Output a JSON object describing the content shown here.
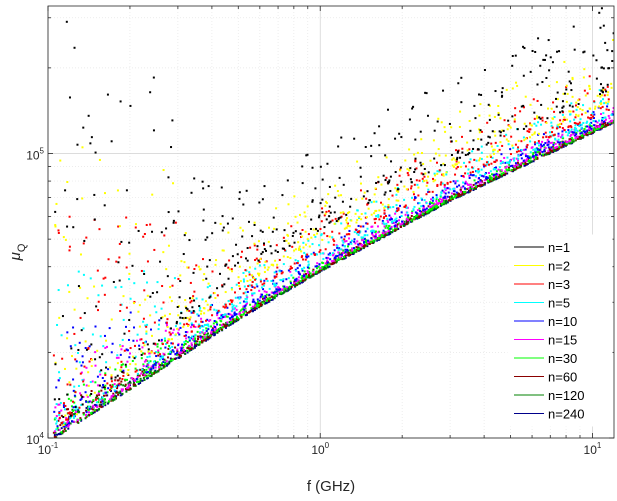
{
  "chart_data": {
    "type": "scatter",
    "title": "",
    "xlabel": "f (GHz)",
    "ylabel": "μ_Q",
    "ylabel_main": "μ",
    "ylabel_sub": "Q",
    "xscale": "log",
    "yscale": "log",
    "xlim": [
      0.1,
      12
    ],
    "ylim": [
      10000,
      330000
    ],
    "grid": true,
    "legend_position": "lower-right",
    "x_ticks": [
      {
        "base": "10",
        "exp": "-1",
        "value": 0.1
      },
      {
        "base": "10",
        "exp": "0",
        "value": 1
      },
      {
        "base": "10",
        "exp": "1",
        "value": 10
      }
    ],
    "y_ticks": [
      {
        "base": "10",
        "exp": "4",
        "value": 10000
      },
      {
        "base": "10",
        "exp": "5",
        "value": 100000
      }
    ],
    "series": [
      {
        "name": "n=1",
        "color": "#000000",
        "ridge": [
          [
            0.2,
            18000
          ],
          [
            0.5,
            38000
          ],
          [
            1,
            54000
          ],
          [
            3,
            93000
          ],
          [
            12,
            170000
          ]
        ],
        "spread": 0.3
      },
      {
        "name": "n=2",
        "color": "#ffff00",
        "ridge": [
          [
            0.2,
            17000
          ],
          [
            0.5,
            34000
          ],
          [
            1,
            49000
          ],
          [
            3,
            85000
          ],
          [
            12,
            154000
          ]
        ],
        "spread": 0.22
      },
      {
        "name": "n=3",
        "color": "#ff0000",
        "ridge": [
          [
            0.2,
            16500
          ],
          [
            0.5,
            31000
          ],
          [
            1,
            45000
          ],
          [
            3,
            79000
          ],
          [
            12,
            145000
          ]
        ],
        "spread": 0.16
      },
      {
        "name": "n=5",
        "color": "#00ffff",
        "ridge": [
          [
            0.2,
            16000
          ],
          [
            0.5,
            29000
          ],
          [
            1,
            42000
          ],
          [
            3,
            74000
          ],
          [
            12,
            138000
          ]
        ],
        "spread": 0.11
      },
      {
        "name": "n=10",
        "color": "#0000ff",
        "ridge": [
          [
            0.2,
            15500
          ],
          [
            0.5,
            27500
          ],
          [
            1,
            40000
          ],
          [
            3,
            71000
          ],
          [
            12,
            133000
          ]
        ],
        "spread": 0.07
      },
      {
        "name": "n=15",
        "color": "#ff00ff",
        "ridge": [
          [
            0.2,
            15200
          ],
          [
            0.5,
            27000
          ],
          [
            1,
            39500
          ],
          [
            3,
            70000
          ],
          [
            12,
            131000
          ]
        ],
        "spread": 0.05
      },
      {
        "name": "n=30",
        "color": "#00ff00",
        "ridge": [
          [
            0.2,
            15000
          ],
          [
            0.5,
            26500
          ],
          [
            1,
            39000
          ],
          [
            3,
            69000
          ],
          [
            12,
            130000
          ]
        ],
        "spread": 0.03
      },
      {
        "name": "n=60",
        "color": "#8b0000",
        "ridge": [
          [
            0.2,
            14900
          ],
          [
            0.5,
            26300
          ],
          [
            1,
            38700
          ],
          [
            3,
            68500
          ],
          [
            12,
            129000
          ]
        ],
        "spread": 0.02
      },
      {
        "name": "n=120",
        "color": "#008000",
        "ridge": [
          [
            0.2,
            14800
          ],
          [
            0.5,
            26100
          ],
          [
            1,
            38500
          ],
          [
            3,
            68200
          ],
          [
            12,
            128500
          ]
        ],
        "spread": 0.015
      },
      {
        "name": "n=240",
        "color": "#00008b",
        "ridge": [
          [
            0.2,
            14800
          ],
          [
            0.5,
            26000
          ],
          [
            1,
            38400
          ],
          [
            3,
            68000
          ],
          [
            12,
            128000
          ]
        ],
        "spread": 0.01
      }
    ]
  }
}
